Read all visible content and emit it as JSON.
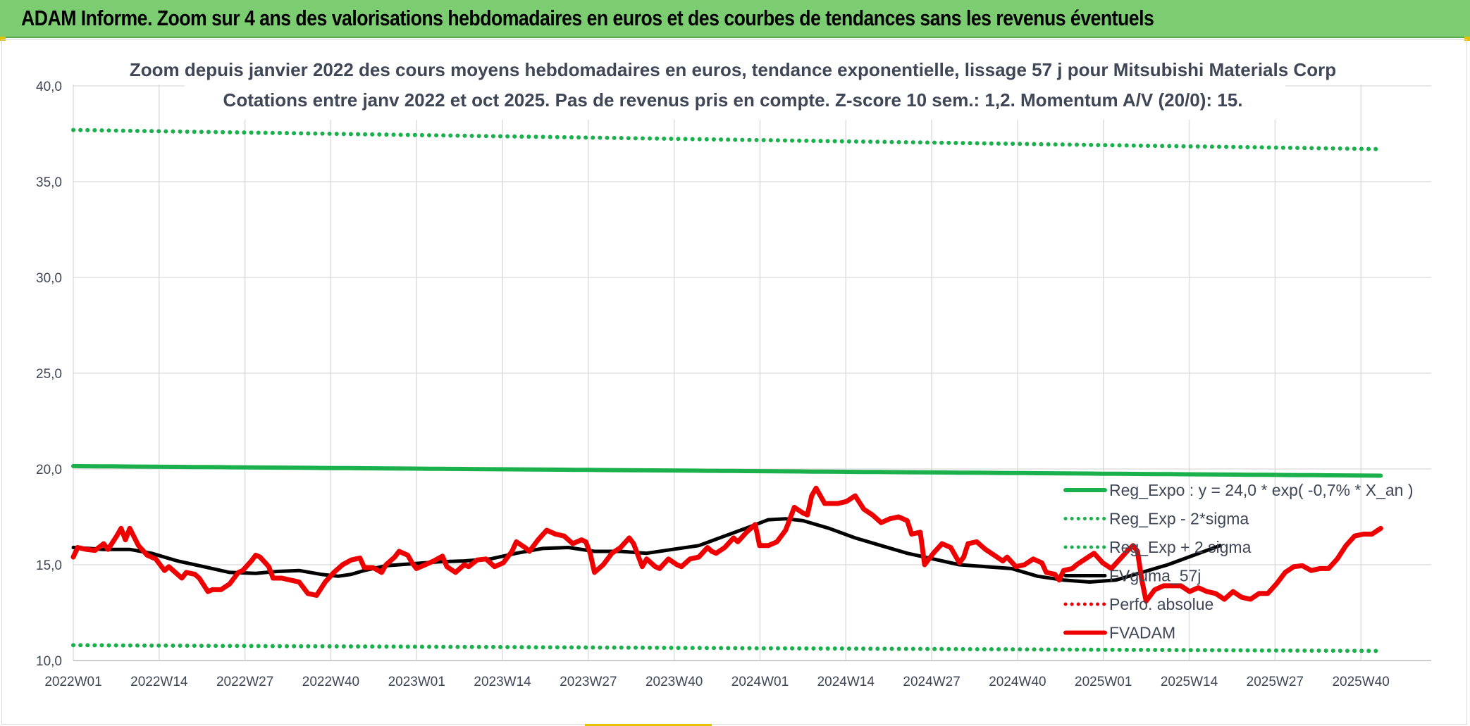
{
  "banner": {
    "title": "ADAM Informe. Zoom sur 4 ans des valorisations hebdomadaires en euros et des courbes de tendances sans les revenus éventuels"
  },
  "colors": {
    "banner": "#7ccd72",
    "green": "#1ab04c",
    "red": "#ee0000",
    "black": "#000000",
    "axis_text": "#3f4656",
    "grid": "#d9d9d9"
  },
  "chart_data": {
    "type": "line",
    "title_line1": "Zoom depuis janvier 2022 des cours moyens hebdomadaires en euros, tendance exponentielle, lissage 57 j pour Mitsubishi Materials Corp",
    "title_line2": "Cotations entre janv 2022 et oct 2025. Pas de revenus pris en compte. Z-score 10 sem.: 1,2. Momentum A/V (20/0): 15.",
    "xlabel": "",
    "ylabel": "",
    "ylim": [
      10,
      40
    ],
    "y_ticks": [
      "10,0",
      "15,0",
      "20,0",
      "25,0",
      "30,0",
      "35,0",
      "40,0"
    ],
    "x_ticks": [
      "2022W01",
      "2022W14",
      "2022W27",
      "2022W40",
      "2023W01",
      "2023W14",
      "2023W27",
      "2023W40",
      "2024W01",
      "2024W14",
      "2024W27",
      "2024W40",
      "2025W01",
      "2025W14",
      "2025W27",
      "2025W40"
    ],
    "week_count": 199,
    "grid": true,
    "legend_position": "bottom-right",
    "legend": [
      "Reg_Expo : y = 24,0 * exp( -0,7% *  X_an )",
      "Reg_Exp - 2*sigma",
      "Reg_Exp + 2 sigma",
      "FVguma_57j",
      "Perfo. absolue",
      "FVADAM"
    ],
    "series": [
      {
        "name": "Reg_Expo : y = 24,0 * exp( -0,7% *  X_an )",
        "style": "solid",
        "color": "#1ab04c",
        "start": 20.15,
        "end": 19.65
      },
      {
        "name": "Reg_Exp - 2*sigma",
        "style": "dotted",
        "color": "#1ab04c",
        "start": 10.8,
        "end": 10.5
      },
      {
        "name": "Reg_Exp + 2 sigma",
        "style": "dotted",
        "color": "#1ab04c",
        "start": 37.7,
        "end": 36.7
      },
      {
        "name": "FVguma_57j",
        "style": "solid",
        "color": "#000000",
        "points": [
          [
            0,
            15.9
          ],
          [
            7,
            15.8
          ],
          [
            13,
            15.8
          ],
          [
            18,
            15.6
          ],
          [
            24,
            15.2
          ],
          [
            30,
            14.9
          ],
          [
            36,
            14.6
          ],
          [
            42,
            14.55
          ],
          [
            47,
            14.65
          ],
          [
            52,
            14.7
          ],
          [
            57,
            14.5
          ],
          [
            61,
            14.4
          ],
          [
            64,
            14.5
          ],
          [
            67,
            14.7
          ],
          [
            72,
            14.95
          ],
          [
            78,
            15.05
          ],
          [
            84,
            15.15
          ],
          [
            90,
            15.2
          ],
          [
            96,
            15.3
          ],
          [
            102,
            15.6
          ],
          [
            108,
            15.85
          ],
          [
            114,
            15.9
          ],
          [
            120,
            15.7
          ],
          [
            126,
            15.7
          ],
          [
            132,
            15.6
          ],
          [
            138,
            15.8
          ],
          [
            144,
            16.0
          ],
          [
            150,
            16.5
          ],
          [
            156,
            17.0
          ],
          [
            160,
            17.35
          ],
          [
            164,
            17.4
          ],
          [
            168,
            17.3
          ],
          [
            174,
            16.9
          ],
          [
            180,
            16.4
          ],
          [
            186,
            16.0
          ],
          [
            192,
            15.6
          ],
          [
            198,
            15.3
          ],
          [
            204,
            15.0
          ],
          [
            210,
            14.9
          ],
          [
            216,
            14.8
          ],
          [
            222,
            14.4
          ],
          [
            228,
            14.2
          ],
          [
            234,
            14.1
          ],
          [
            240,
            14.2
          ],
          [
            246,
            14.6
          ],
          [
            252,
            15.0
          ],
          [
            258,
            15.5
          ],
          [
            264,
            16.0
          ]
        ]
      },
      {
        "name": "Perfo. absolue",
        "style": "dotted",
        "color": "#ee0000",
        "points": []
      },
      {
        "name": "FVADAM",
        "style": "solid",
        "color": "#ee0000",
        "points": [
          [
            0,
            15.4
          ],
          [
            1,
            15.9
          ],
          [
            3,
            15.8
          ],
          [
            5,
            15.75
          ],
          [
            7,
            16.1
          ],
          [
            8,
            15.8
          ],
          [
            10,
            16.5
          ],
          [
            11,
            16.9
          ],
          [
            12,
            16.3
          ],
          [
            13,
            16.9
          ],
          [
            15,
            16.0
          ],
          [
            17,
            15.5
          ],
          [
            19,
            15.3
          ],
          [
            21,
            14.7
          ],
          [
            22,
            14.9
          ],
          [
            24,
            14.5
          ],
          [
            25,
            14.3
          ],
          [
            26,
            14.6
          ],
          [
            28,
            14.5
          ],
          [
            29,
            14.3
          ],
          [
            31,
            13.6
          ],
          [
            32,
            13.7
          ],
          [
            34,
            13.7
          ],
          [
            36,
            14.0
          ],
          [
            38,
            14.6
          ],
          [
            39,
            14.7
          ],
          [
            41,
            15.2
          ],
          [
            42,
            15.5
          ],
          [
            43,
            15.4
          ],
          [
            45,
            14.9
          ],
          [
            46,
            14.3
          ],
          [
            48,
            14.3
          ],
          [
            50,
            14.2
          ],
          [
            52,
            14.1
          ],
          [
            53,
            13.8
          ],
          [
            54,
            13.5
          ],
          [
            56,
            13.4
          ],
          [
            58,
            14.1
          ],
          [
            60,
            14.6
          ],
          [
            62,
            15.0
          ],
          [
            64,
            15.25
          ],
          [
            66,
            15.35
          ],
          [
            67,
            14.85
          ],
          [
            69,
            14.85
          ],
          [
            71,
            14.6
          ],
          [
            72,
            15.0
          ],
          [
            74,
            15.4
          ],
          [
            75,
            15.7
          ],
          [
            77,
            15.5
          ],
          [
            78,
            15.1
          ],
          [
            79,
            14.8
          ],
          [
            81,
            15.0
          ],
          [
            83,
            15.2
          ],
          [
            85,
            15.45
          ],
          [
            86,
            14.9
          ],
          [
            88,
            14.6
          ],
          [
            90,
            15.0
          ],
          [
            91,
            14.9
          ],
          [
            93,
            15.25
          ],
          [
            95,
            15.3
          ],
          [
            97,
            14.9
          ],
          [
            99,
            15.1
          ],
          [
            101,
            15.7
          ],
          [
            102,
            16.2
          ],
          [
            104,
            15.9
          ],
          [
            105,
            15.7
          ],
          [
            107,
            16.3
          ],
          [
            109,
            16.8
          ],
          [
            111,
            16.6
          ],
          [
            113,
            16.5
          ],
          [
            115,
            16.1
          ],
          [
            117,
            16.3
          ],
          [
            118,
            16.2
          ],
          [
            119,
            15.6
          ],
          [
            120,
            14.6
          ],
          [
            122,
            15.0
          ],
          [
            124,
            15.6
          ],
          [
            126,
            15.9
          ],
          [
            128,
            16.4
          ],
          [
            129,
            16.1
          ],
          [
            131,
            14.9
          ],
          [
            132,
            15.3
          ],
          [
            134,
            14.9
          ],
          [
            135,
            14.8
          ],
          [
            137,
            15.3
          ],
          [
            139,
            15.0
          ],
          [
            140,
            14.9
          ],
          [
            142,
            15.3
          ],
          [
            144,
            15.4
          ],
          [
            146,
            15.9
          ],
          [
            147,
            15.7
          ],
          [
            148,
            15.6
          ],
          [
            150,
            15.9
          ],
          [
            152,
            16.4
          ],
          [
            153,
            16.2
          ],
          [
            155,
            16.7
          ],
          [
            157,
            17.1
          ],
          [
            158,
            16.0
          ],
          [
            160,
            16.0
          ],
          [
            162,
            16.2
          ],
          [
            164,
            16.8
          ],
          [
            166,
            18.0
          ],
          [
            168,
            17.7
          ],
          [
            169,
            17.6
          ],
          [
            170,
            18.6
          ],
          [
            171,
            19.0
          ],
          [
            173,
            18.2
          ],
          [
            176,
            18.2
          ],
          [
            178,
            18.3
          ],
          [
            180,
            18.6
          ],
          [
            182,
            17.9
          ],
          [
            184,
            17.6
          ],
          [
            186,
            17.2
          ],
          [
            188,
            17.4
          ],
          [
            190,
            17.5
          ],
          [
            192,
            17.3
          ],
          [
            193,
            16.6
          ],
          [
            195,
            16.7
          ],
          [
            196,
            15.0
          ],
          [
            198,
            15.6
          ],
          [
            200,
            16.1
          ],
          [
            202,
            15.9
          ],
          [
            204,
            15.1
          ],
          [
            205,
            15.4
          ],
          [
            206,
            16.1
          ],
          [
            208,
            16.2
          ],
          [
            210,
            15.8
          ],
          [
            212,
            15.5
          ],
          [
            214,
            15.2
          ],
          [
            215,
            15.4
          ],
          [
            217,
            14.9
          ],
          [
            219,
            15.0
          ],
          [
            221,
            15.3
          ],
          [
            223,
            15.1
          ],
          [
            224,
            14.6
          ],
          [
            226,
            14.5
          ],
          [
            227,
            14.2
          ],
          [
            228,
            14.7
          ],
          [
            230,
            14.8
          ],
          [
            231,
            15.0
          ],
          [
            233,
            15.3
          ],
          [
            235,
            15.6
          ],
          [
            237,
            15.1
          ],
          [
            239,
            14.8
          ],
          [
            241,
            15.3
          ],
          [
            243,
            15.8
          ],
          [
            244,
            16.0
          ],
          [
            245,
            15.7
          ],
          [
            246,
            14.2
          ],
          [
            247,
            13.1
          ],
          [
            249,
            13.7
          ],
          [
            251,
            13.9
          ],
          [
            253,
            13.9
          ],
          [
            255,
            13.9
          ],
          [
            257,
            13.6
          ],
          [
            259,
            13.8
          ],
          [
            261,
            13.6
          ],
          [
            263,
            13.5
          ],
          [
            265,
            13.2
          ],
          [
            267,
            13.6
          ],
          [
            269,
            13.3
          ],
          [
            271,
            13.2
          ],
          [
            273,
            13.5
          ],
          [
            275,
            13.5
          ],
          [
            277,
            14.0
          ],
          [
            279,
            14.6
          ],
          [
            281,
            14.9
          ],
          [
            283,
            14.95
          ],
          [
            285,
            14.7
          ],
          [
            287,
            14.8
          ],
          [
            289,
            14.8
          ],
          [
            291,
            15.3
          ],
          [
            293,
            16.0
          ],
          [
            295,
            16.5
          ],
          [
            297,
            16.6
          ],
          [
            299,
            16.6
          ],
          [
            301,
            16.9
          ]
        ]
      }
    ]
  }
}
